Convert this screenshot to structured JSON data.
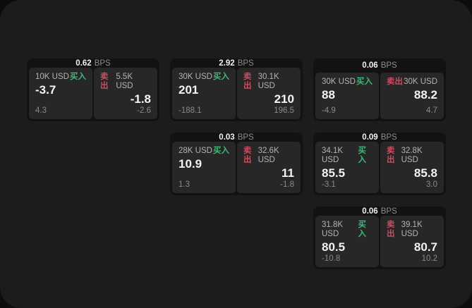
{
  "page": {
    "bps_suffix": "BPS",
    "buy_label": "买入",
    "sell_label": "卖出",
    "colors": {
      "backdrop": "#0d0d0d",
      "page_bg": "#1c1c1e",
      "card_bg": "#121212",
      "panel_bg": "#272727",
      "buy_green": "#3cb878",
      "sell_red": "#cf4a60"
    }
  },
  "cards": [
    {
      "bps": "0.62",
      "row": 1,
      "col": 1,
      "buy": {
        "amount": "10K USD",
        "value": "-3.7",
        "delta": "4.3"
      },
      "sell": {
        "amount": "5.5K USD",
        "value": "-1.8",
        "delta": "-2.6"
      }
    },
    {
      "bps": "2.92",
      "row": 1,
      "col": 2,
      "buy": {
        "amount": "30K USD",
        "value": "201",
        "delta": "-188.1"
      },
      "sell": {
        "amount": "30.1K USD",
        "value": "210",
        "delta": "196.5"
      }
    },
    {
      "bps": "0.06",
      "row": 1,
      "col": 3,
      "buy": {
        "amount": "30K USD",
        "value": "88",
        "delta": "-4.9"
      },
      "sell": {
        "amount": "30K USD",
        "value": "88.2",
        "delta": "4.7"
      }
    },
    {
      "bps": "0.03",
      "row": 2,
      "col": 2,
      "buy": {
        "amount": "28K USD",
        "value": "10.9",
        "delta": "1.3"
      },
      "sell": {
        "amount": "32.6K USD",
        "value": "11",
        "delta": "-1.8"
      }
    },
    {
      "bps": "0.09",
      "row": 2,
      "col": 3,
      "buy": {
        "amount": "34.1K USD",
        "value": "85.5",
        "delta": "-3.1"
      },
      "sell": {
        "amount": "32.8K USD",
        "value": "85.8",
        "delta": "3.0"
      }
    },
    {
      "bps": "0.06",
      "row": 3,
      "col": 3,
      "buy": {
        "amount": "31.8K USD",
        "value": "80.5",
        "delta": "-10.8"
      },
      "sell": {
        "amount": "39.1K USD",
        "value": "80.7",
        "delta": "10.2"
      }
    }
  ]
}
